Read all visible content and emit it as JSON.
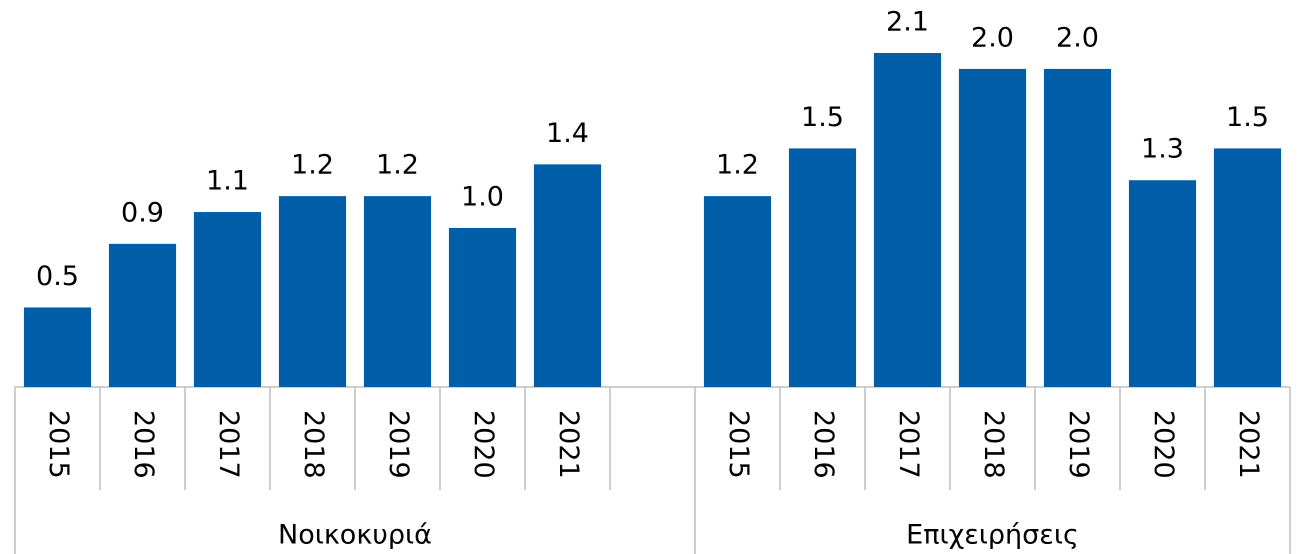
{
  "chart_data": {
    "type": "bar",
    "color": "#005ea8",
    "groups": [
      {
        "name": "Νοικοκυριά",
        "categories": [
          "2015",
          "2016",
          "2017",
          "2018",
          "2019",
          "2020",
          "2021",
          null
        ],
        "values": [
          0.5,
          0.9,
          1.1,
          1.2,
          1.2,
          1.0,
          1.4,
          null
        ],
        "value_labels": [
          "0.5",
          "0.9",
          "1.1",
          "1.2",
          "1.2",
          "1.0",
          "1.4",
          null
        ]
      },
      {
        "name": "Επιχειρήσεις",
        "categories": [
          "2015",
          "2016",
          "2017",
          "2018",
          "2019",
          "2020",
          "2021"
        ],
        "values": [
          1.2,
          1.5,
          2.1,
          2.0,
          2.0,
          1.3,
          1.5
        ],
        "value_labels": [
          "1.2",
          "1.5",
          "2.1",
          "2.0",
          "2.0",
          "1.3",
          "1.5"
        ]
      }
    ]
  }
}
